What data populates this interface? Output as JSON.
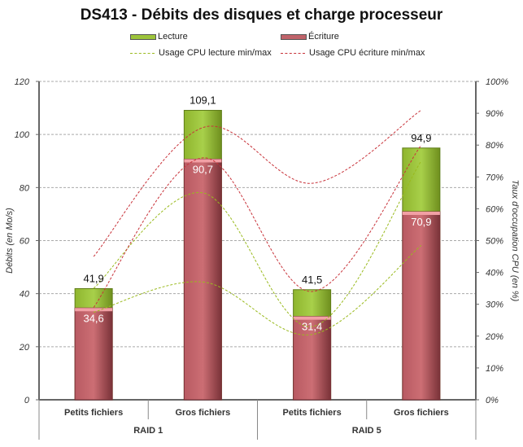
{
  "chart_data": {
    "type": "bar",
    "title": "DS413 - Débits des disques et charge processeur",
    "ylabel": "Débits (en Mo/s)",
    "y2label": "Taux d'occupation CPU (en %)",
    "ylim": [
      0,
      120
    ],
    "y2lim": [
      0,
      100
    ],
    "yticks": [
      "0",
      "20",
      "40",
      "60",
      "80",
      "100",
      "120"
    ],
    "y2ticks": [
      "0%",
      "10%",
      "20%",
      "30%",
      "40%",
      "50%",
      "60%",
      "70%",
      "80%",
      "90%",
      "100%"
    ],
    "categories": [
      "Petits fichiers",
      "Gros fichiers",
      "Petits fichiers",
      "Gros fichiers"
    ],
    "groups": [
      "RAID 1",
      "RAID 5"
    ],
    "series": [
      {
        "name": "Lecture",
        "values": [
          41.9,
          109.1,
          41.5,
          94.9
        ],
        "labels": [
          "41,9",
          "109,1",
          "41,5",
          "94,9"
        ],
        "color": "#9dc43a"
      },
      {
        "name": "Écriture",
        "values": [
          34.6,
          90.7,
          31.4,
          70.9
        ],
        "labels": [
          "34,6",
          "90,7",
          "31,4",
          "70,9"
        ],
        "color": "#c0636a"
      }
    ],
    "lines": [
      {
        "name": "Usage CPU lecture min/max",
        "color": "#9aba1e",
        "min": [
          27.5,
          37,
          20.5,
          48.5
        ],
        "max": [
          35,
          65,
          23,
          75
        ]
      },
      {
        "name": "Usage CPU écriture min/max",
        "color": "#c8333a",
        "min": [
          29,
          76,
          34,
          80
        ],
        "max": [
          45,
          85.5,
          68,
          91
        ]
      }
    ],
    "legend": "top",
    "grid": true
  }
}
